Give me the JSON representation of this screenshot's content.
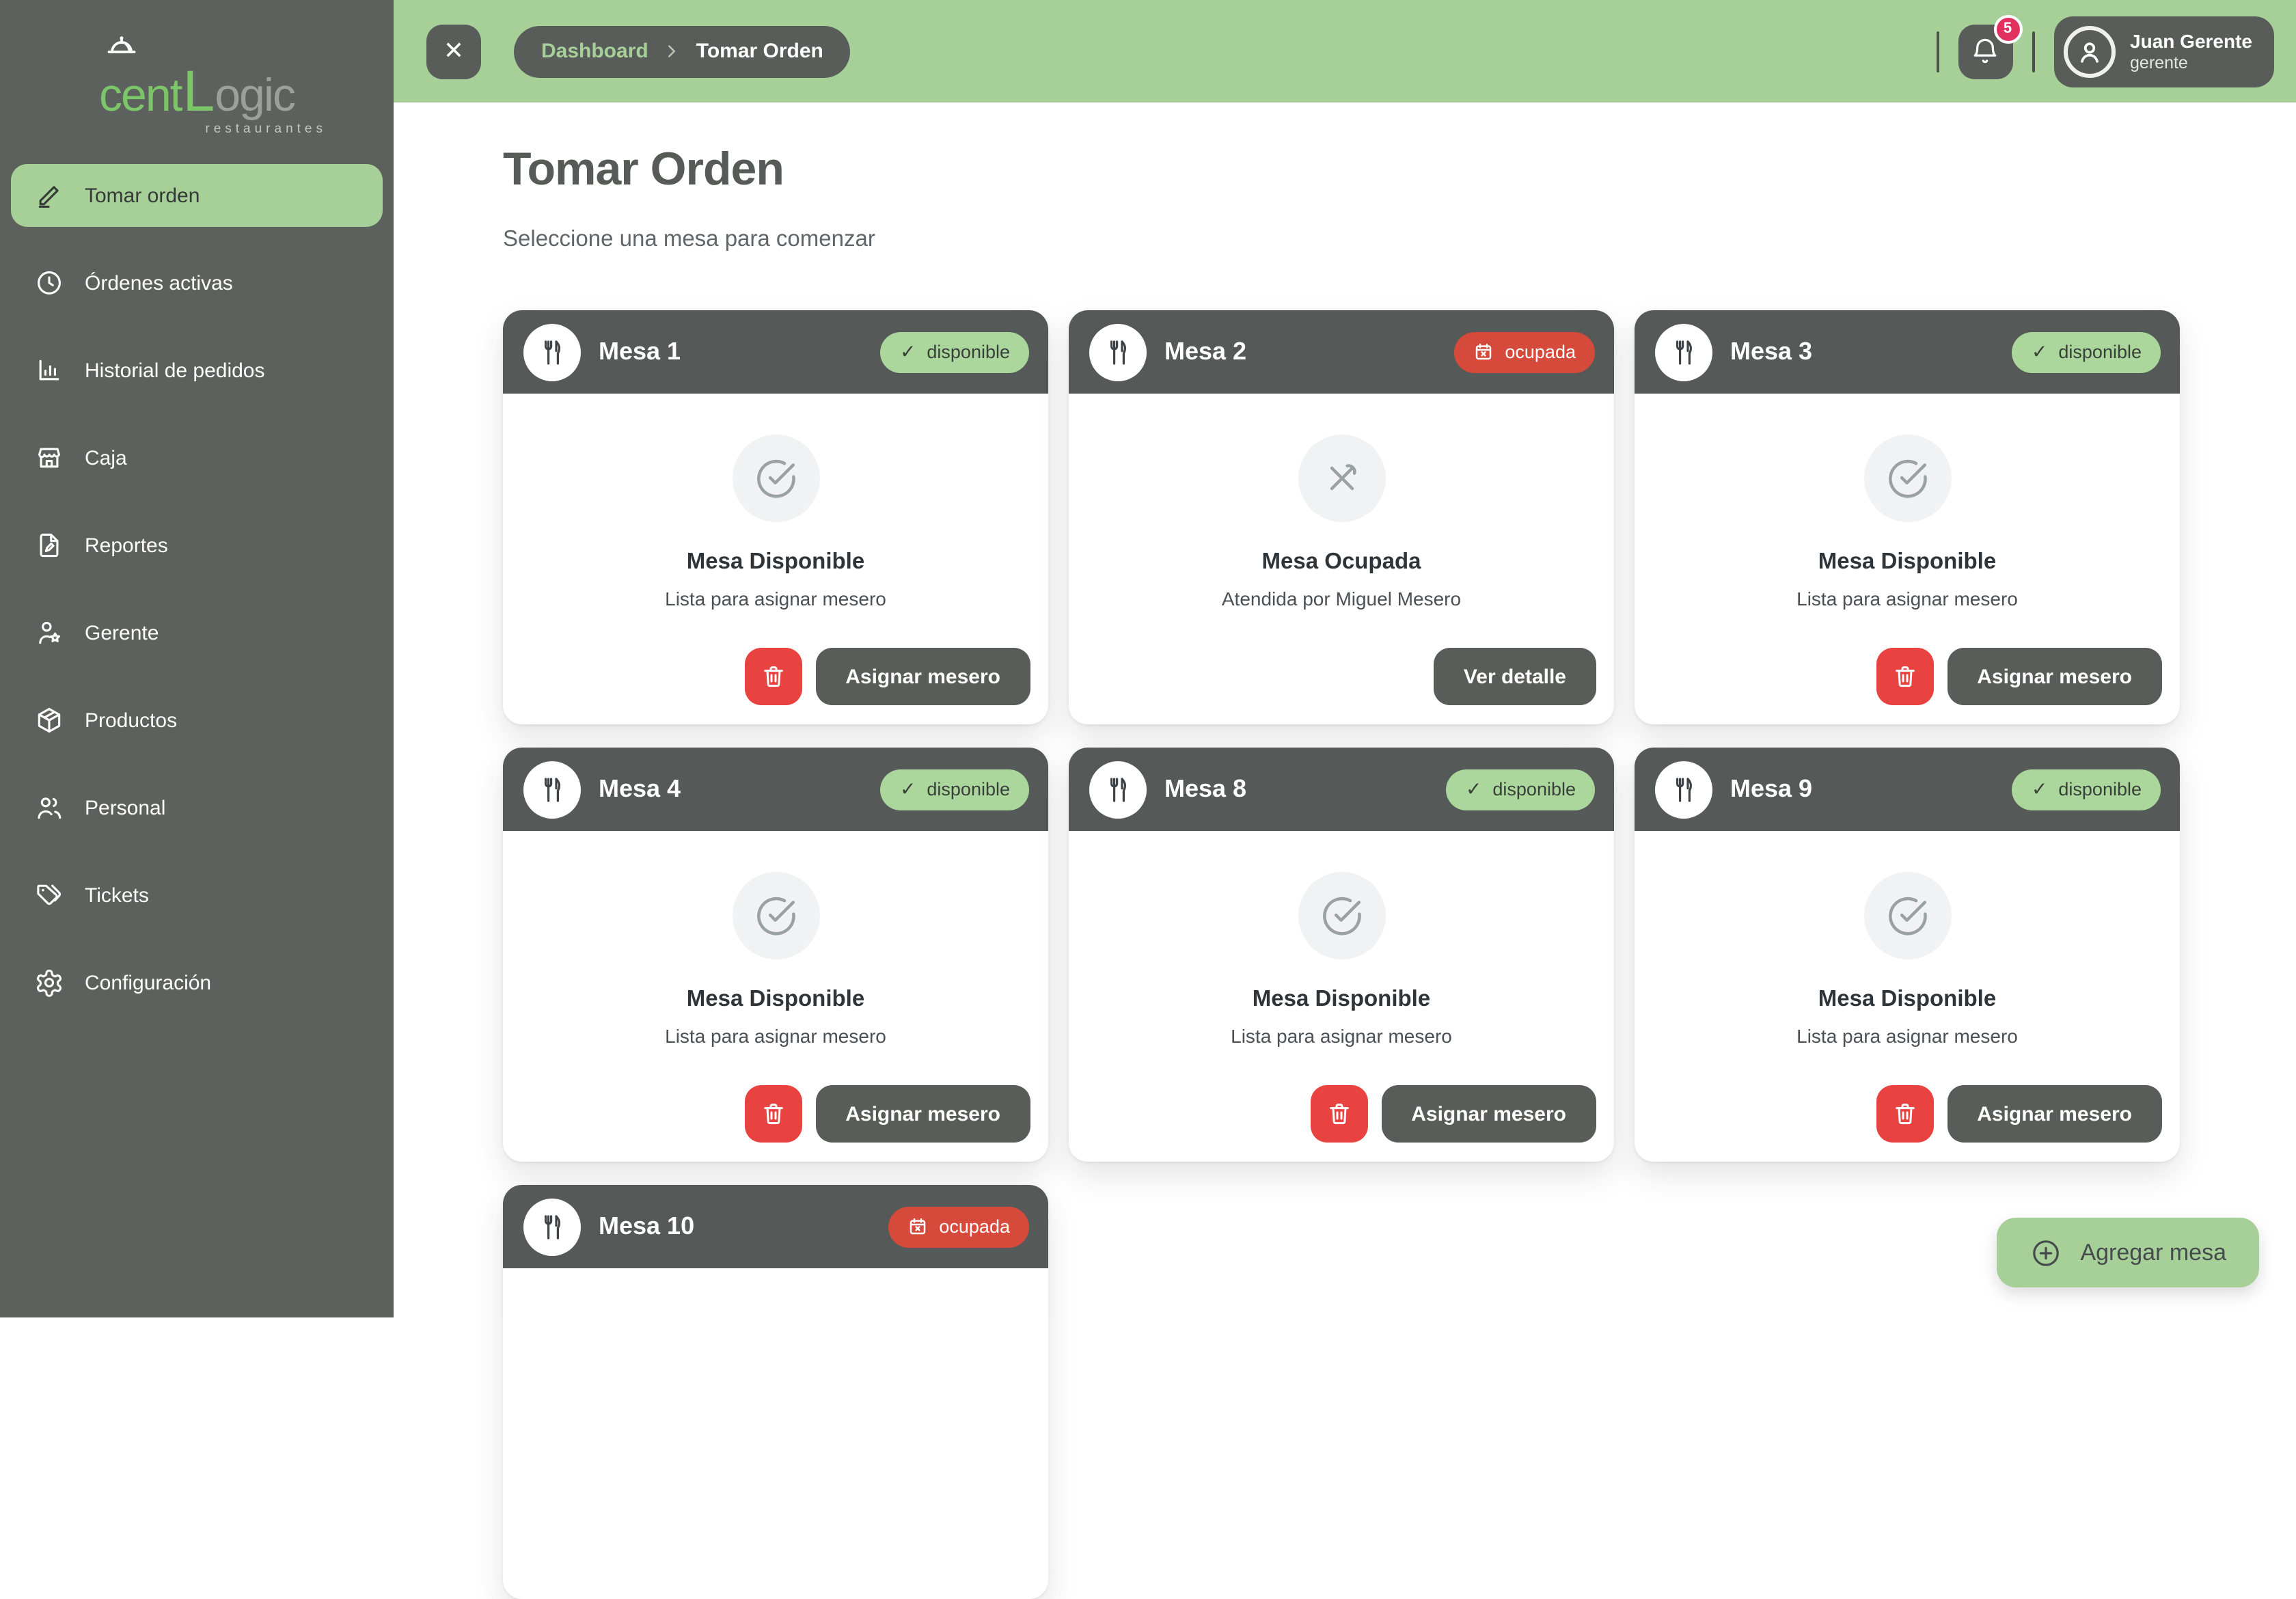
{
  "brand": {
    "logo_text_1": "cent",
    "logo_text_l": "L",
    "logo_text_rest": "ogic",
    "logo_subtitle": "restaurantes"
  },
  "sidebar": {
    "items": [
      {
        "id": "tomar-orden",
        "label": "Tomar orden",
        "icon": "pen",
        "active": true
      },
      {
        "id": "ordenes-activas",
        "label": "Órdenes activas",
        "icon": "clock",
        "active": false
      },
      {
        "id": "historial-de-pedidos",
        "label": "Historial de pedidos",
        "icon": "chart",
        "active": false
      },
      {
        "id": "caja",
        "label": "Caja",
        "icon": "store",
        "active": false
      },
      {
        "id": "reportes",
        "label": "Reportes",
        "icon": "report",
        "active": false
      },
      {
        "id": "gerente",
        "label": "Gerente",
        "icon": "manager",
        "active": false
      },
      {
        "id": "productos",
        "label": "Productos",
        "icon": "box",
        "active": false
      },
      {
        "id": "personal",
        "label": "Personal",
        "icon": "people",
        "active": false
      },
      {
        "id": "tickets",
        "label": "Tickets",
        "icon": "tag",
        "active": false
      },
      {
        "id": "configuracion",
        "label": "Configuración",
        "icon": "gear",
        "active": false
      }
    ]
  },
  "topbar": {
    "close_glyph": "✕",
    "breadcrumb": {
      "parent": "Dashboard",
      "current": "Tomar Orden"
    },
    "notification_count": "5",
    "user": {
      "name": "Juan Gerente",
      "role": "gerente"
    }
  },
  "page": {
    "title": "Tomar Orden",
    "subtitle": "Seleccione una mesa para comenzar"
  },
  "status_labels": {
    "available": "disponible",
    "occupied": "ocupada",
    "available_check": "✓"
  },
  "tables": [
    {
      "name": "Mesa 1",
      "status": "available",
      "state_title": "Mesa Disponible",
      "state_subtitle": "Lista para asignar mesero",
      "buttons": {
        "delete": true,
        "primary": "Asignar mesero"
      }
    },
    {
      "name": "Mesa 2",
      "status": "occupied",
      "state_title": "Mesa Ocupada",
      "state_subtitle": "Atendida por Miguel Mesero",
      "buttons": {
        "delete": false,
        "primary": "Ver detalle"
      }
    },
    {
      "name": "Mesa 3",
      "status": "available",
      "state_title": "Mesa Disponible",
      "state_subtitle": "Lista para asignar mesero",
      "buttons": {
        "delete": true,
        "primary": "Asignar mesero"
      }
    },
    {
      "name": "Mesa 4",
      "status": "available",
      "state_title": "Mesa Disponible",
      "state_subtitle": "Lista para asignar mesero",
      "buttons": {
        "delete": true,
        "primary": "Asignar mesero"
      }
    },
    {
      "name": "Mesa 8",
      "status": "available",
      "state_title": "Mesa Disponible",
      "state_subtitle": "Lista para asignar mesero",
      "buttons": {
        "delete": true,
        "primary": "Asignar mesero"
      }
    },
    {
      "name": "Mesa 9",
      "status": "available",
      "state_title": "Mesa Disponible",
      "state_subtitle": "Lista para asignar mesero",
      "buttons": {
        "delete": true,
        "primary": "Asignar mesero"
      }
    },
    {
      "name": "Mesa 10",
      "status": "occupied",
      "state_title": "",
      "state_subtitle": "",
      "buttons": {
        "delete": false,
        "primary": ""
      }
    }
  ],
  "add_table_button": "Agregar mesa",
  "colors": {
    "topbar_green": "#a7cf98",
    "sidebar_gray": "#5c615e",
    "card_header_gray": "#555a58",
    "badge_green": "#abd69c",
    "badge_red": "#d54a3b",
    "trash_red": "#e84340",
    "notification_pink": "#e3315f",
    "logo_green": "#7cc669"
  }
}
